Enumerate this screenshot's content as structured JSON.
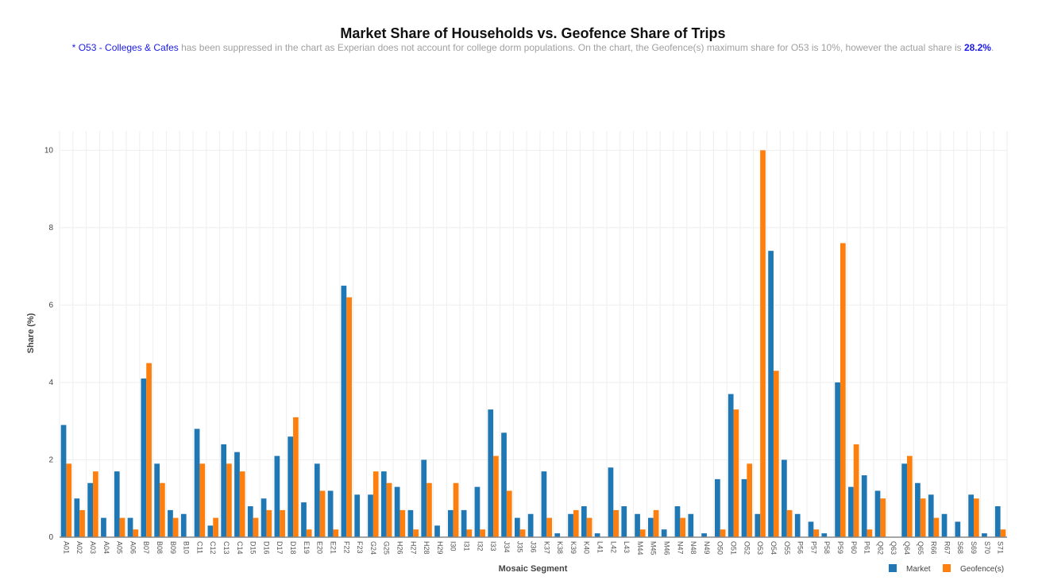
{
  "chart_data": {
    "type": "bar",
    "title": "Market Share of Households vs. Geofence Share of Trips",
    "subtitle": {
      "prefix": "* ",
      "highlight": "O53 - Colleges & Cafes",
      "text": " has been suppressed in the chart as Experian does not account for college dorm populations. On the chart, the Geofence(s) maximum share for O53 is 10%, however the actual share is ",
      "value": "28.2%",
      "suffix": "."
    },
    "xlabel": "Mosaic Segment",
    "ylabel": "Share (%)",
    "ylim": [
      0,
      10.5
    ],
    "yticks": [
      0,
      2,
      4,
      6,
      8,
      10
    ],
    "grid": true,
    "legend_placement": "bottom-right",
    "colors": {
      "Market": "#1f77b4",
      "Geofence(s)": "#ff7f0e"
    },
    "categories": [
      "A01",
      "A02",
      "A03",
      "A04",
      "A05",
      "A06",
      "B07",
      "B08",
      "B09",
      "B10",
      "C11",
      "C12",
      "C13",
      "C14",
      "D15",
      "D16",
      "D17",
      "D18",
      "E19",
      "E20",
      "E21",
      "F22",
      "F23",
      "G24",
      "G25",
      "H26",
      "H27",
      "H28",
      "H29",
      "I30",
      "I31",
      "I32",
      "I33",
      "J34",
      "J35",
      "J36",
      "K37",
      "K38",
      "K39",
      "K40",
      "L41",
      "L42",
      "L43",
      "M44",
      "M45",
      "M46",
      "N47",
      "N48",
      "N49",
      "O50",
      "O51",
      "O52",
      "O53",
      "O54",
      "O55",
      "P56",
      "P57",
      "P58",
      "P59",
      "P60",
      "P61",
      "Q62",
      "Q63",
      "Q64",
      "Q65",
      "R66",
      "R67",
      "S68",
      "S69",
      "S70",
      "S71"
    ],
    "series": [
      {
        "name": "Market",
        "values": [
          2.9,
          1.0,
          1.4,
          0.5,
          1.7,
          0.5,
          4.1,
          1.9,
          0.7,
          0.6,
          2.8,
          0.3,
          2.4,
          2.2,
          0.8,
          1.0,
          2.1,
          2.6,
          0.9,
          1.9,
          1.2,
          6.5,
          1.1,
          1.1,
          1.7,
          1.3,
          0.7,
          2.0,
          0.3,
          0.7,
          0.7,
          1.3,
          3.3,
          2.7,
          0.5,
          0.6,
          1.7,
          0.1,
          0.6,
          0.8,
          0.1,
          1.8,
          0.8,
          0.6,
          0.5,
          0.2,
          0.8,
          0.6,
          0.1,
          1.5,
          3.7,
          1.5,
          0.6,
          7.4,
          2.0,
          0.6,
          0.4,
          0.1,
          4.0,
          1.3,
          1.6,
          1.2,
          0,
          1.9,
          1.4,
          1.1,
          0.6,
          0.4,
          1.1,
          0.1,
          0.8
        ]
      },
      {
        "name": "Geofence(s)",
        "values": [
          1.9,
          0.7,
          1.7,
          0,
          0.5,
          0.2,
          4.5,
          1.4,
          0.5,
          0,
          1.9,
          0.5,
          1.9,
          1.7,
          0.5,
          0.7,
          0.7,
          3.1,
          0.2,
          1.2,
          0.2,
          6.2,
          0,
          1.7,
          1.4,
          0.7,
          0.2,
          1.4,
          0,
          1.4,
          0.2,
          0.2,
          2.1,
          1.2,
          0.2,
          0,
          0.5,
          0,
          0.7,
          0.5,
          0,
          0.7,
          0,
          0.2,
          0.7,
          0,
          0.5,
          0,
          0,
          0.2,
          3.3,
          1.9,
          10,
          4.3,
          0.7,
          0,
          0.2,
          0,
          7.6,
          2.4,
          0.2,
          1.0,
          0,
          2.1,
          1.0,
          0.5,
          0,
          0,
          1.0,
          0,
          0.2
        ]
      }
    ]
  }
}
